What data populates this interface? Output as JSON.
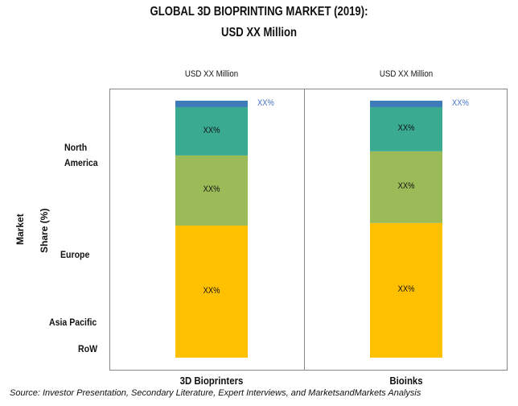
{
  "chart_data": {
    "type": "bar",
    "stacked": true,
    "title": "GLOBAL 3D BIOPRINTING MARKET (2019):",
    "subtitle": "USD XX Million",
    "ylabel": [
      "Market",
      "Share (%)"
    ],
    "xlabel": "",
    "ylim": [
      0,
      100
    ],
    "grid": false,
    "categories": [
      "3D Bioprinters",
      "Bioinks"
    ],
    "category_headers": [
      "USD XX Million",
      "USD XX Million"
    ],
    "series": [
      {
        "name": "North America",
        "display_label": [
          "North",
          "America"
        ],
        "color": "#FFC000",
        "values": [
          51.4,
          52.4
        ],
        "labels": [
          "XX%",
          "XX%"
        ]
      },
      {
        "name": "Europe",
        "display_label": [
          "Europe"
        ],
        "color": "#9BBB59",
        "values": [
          27.3,
          27.9
        ],
        "labels": [
          "XX%",
          "XX%"
        ]
      },
      {
        "name": "Asia Pacific",
        "display_label": [
          "Asia Pacific"
        ],
        "color": "#3AAA91",
        "values": [
          18.8,
          17.2
        ],
        "labels": [
          "XX%",
          "XX%"
        ]
      },
      {
        "name": "RoW",
        "display_label": [
          "RoW"
        ],
        "color": "#3D7BBA",
        "values": [
          2.5,
          2.5
        ],
        "labels": [
          "XX%",
          "XX%"
        ]
      }
    ],
    "source": "Source: Investor Presentation, Secondary Literature, Expert Interviews, and MarketsandMarkets Analysis"
  }
}
